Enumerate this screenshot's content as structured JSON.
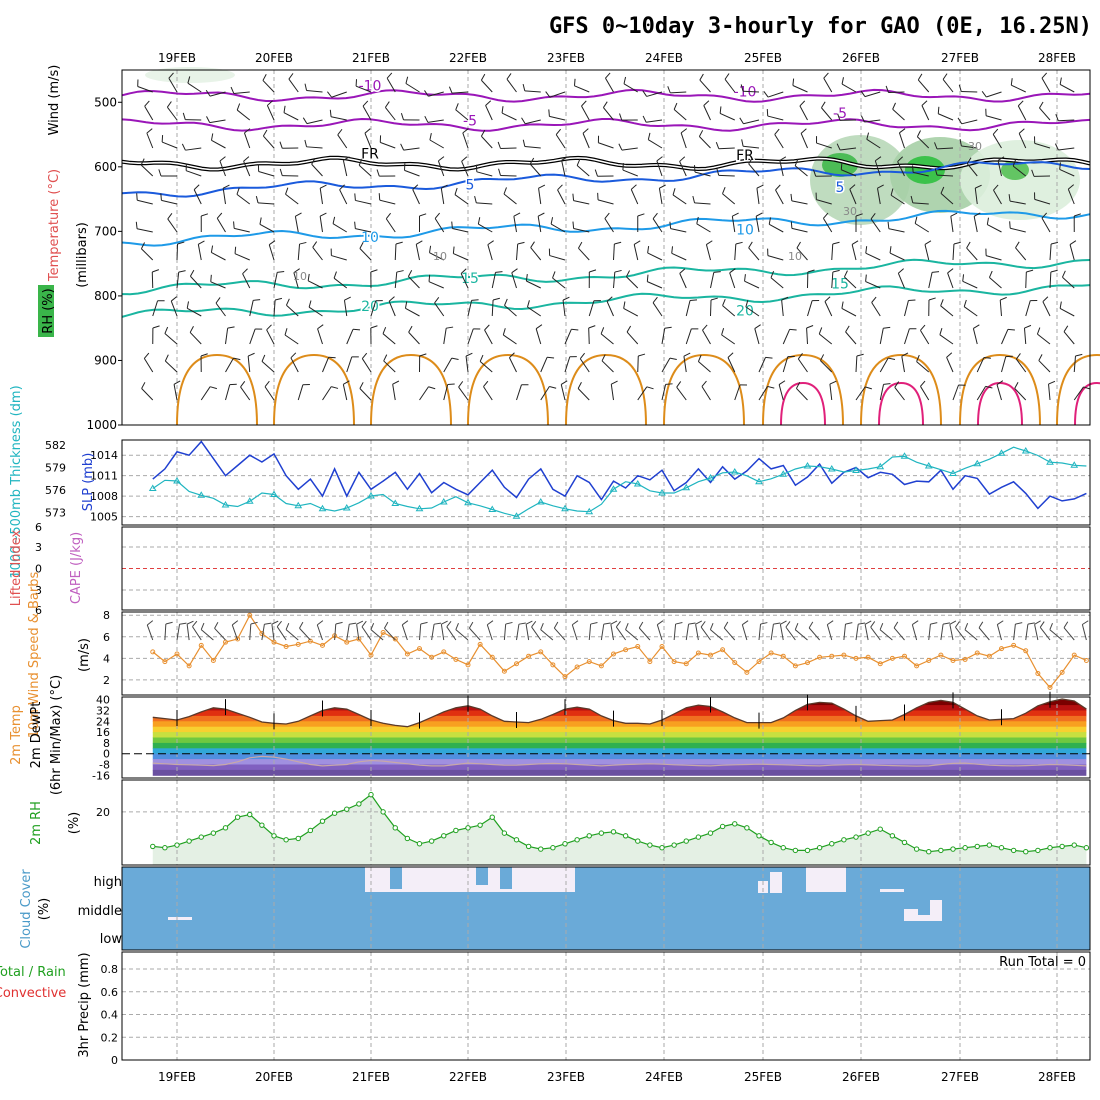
{
  "title": "GFS 0~10day 3-hourly for GAO (0E, 16.25N)",
  "dates": [
    "19FEB",
    "20FEB",
    "21FEB",
    "22FEB",
    "23FEB",
    "24FEB",
    "25FEB",
    "26FEB",
    "27FEB",
    "28FEB"
  ],
  "colors": {
    "grid": "#aaaaaa",
    "temp_cold": "#9a16b8",
    "temp_mid": "#1a5adc",
    "temp_cool": "#1e9ae8",
    "temp_warm": "#1ab5a0",
    "temp_hot": "#dd8c1a",
    "temp_vhot": "#e0207a",
    "slp": "#2040d0",
    "thickness": "#20b5c0",
    "wind": "#e89030",
    "rh": "#20a020",
    "cloud": "#6aaad8",
    "zero_line": "#e04040"
  },
  "chart_data": [
    {
      "panel": "upper_air",
      "type": "contour",
      "ylabel": [
        "Wind (m/s)",
        "Temperature (°C)",
        "RH (%)",
        "(millibars)"
      ],
      "yticks": [
        "500",
        "600",
        "700",
        "800",
        "900",
        "1000"
      ],
      "ylim": [
        450,
        1000
      ],
      "temperature_isotherms": [
        {
          "label": "-10",
          "level_mb": 490
        },
        {
          "label": "-5",
          "level_mb": 535
        },
        {
          "label": "FR",
          "level_mb": 595
        },
        {
          "label": "5",
          "level_mb": 640
        },
        {
          "label": "10",
          "level_mb": 715
        },
        {
          "label": "15",
          "level_mb": 790
        },
        {
          "label": "20",
          "level_mb": 830
        }
      ],
      "rh_labels": [
        "10",
        "10",
        "10",
        "30",
        "30"
      ]
    },
    {
      "panel": "slp_thickness",
      "type": "line",
      "ylabel_left": "1000~500mb Thickness (dm)",
      "ylabel_right": "SLP (mb)",
      "left_ticks": [
        "582",
        "579",
        "576",
        "573"
      ],
      "right_ticks": [
        "1014",
        "1011",
        "1008",
        "1005"
      ],
      "series": [
        {
          "name": "SLP (mb)",
          "values": [
            1010.5,
            1012,
            1014.5,
            1014,
            1016,
            1013.5,
            1011,
            1012.5,
            1014,
            1013,
            1014.2,
            1011,
            1009,
            1010.5,
            1008,
            1012,
            1008,
            1011.5,
            1009,
            1010.2,
            1011.5,
            1009,
            1011.3,
            1008.5,
            1010,
            1009,
            1008.2,
            1010,
            1011.8,
            1009.3,
            1007.8,
            1010.5,
            1012,
            1009,
            1008,
            1011,
            1010,
            1007.5,
            1010.2,
            1009.2,
            1011,
            1010.4,
            1011.8,
            1008.8,
            1010,
            1012,
            1010,
            1012.3,
            1010.5,
            1011.7,
            1013.5,
            1012,
            1012.5,
            1009.6,
            1010.8,
            1012.7,
            1009.9,
            1011.5,
            1012.2,
            1010.7,
            1011.5,
            1011.2,
            1009.7,
            1010.2,
            1010.1,
            1011.8,
            1009,
            1011,
            1010.6,
            1008.3,
            1009.3,
            1010.1,
            1008.4,
            1006.2,
            1008,
            1007.3,
            1007.6,
            1008.4
          ]
        },
        {
          "name": "1000~500mb Thickness (dm)",
          "values": [
            576.2,
            577.3,
            577.2,
            575.8,
            575.3,
            574.9,
            574,
            573.8,
            574.5,
            575.6,
            575.4,
            574.2,
            573.9,
            574.2,
            573.5,
            573.2,
            573.6,
            574.3,
            575.2,
            575.4,
            574.2,
            573.8,
            573.5,
            573.6,
            574.4,
            575.1,
            574.3,
            573.9,
            573.4,
            572.9,
            572.5,
            573.5,
            574.4,
            573.9,
            573.5,
            573.2,
            573.1,
            574.1,
            576.1,
            577.1,
            576.8,
            575.9,
            575.6,
            575.6,
            576.3,
            577.1,
            577.6,
            578.3,
            578.4,
            577.9,
            577.1,
            577.5,
            578.1,
            578.8,
            579.2,
            579.1,
            578.8,
            578.4,
            578.6,
            578.8,
            579.1,
            580.4,
            580.5,
            579.7,
            579.2,
            578.7,
            578.2,
            578.9,
            579.5,
            580.1,
            580.9,
            581.7,
            581.2,
            580.6,
            579.7,
            579.6,
            579.3,
            579.2
          ]
        }
      ]
    },
    {
      "panel": "cape_li",
      "type": "line",
      "ylabel": [
        "CAPE (J/kg)",
        "Lifted Index"
      ],
      "yticks": [
        "6",
        "3",
        "0",
        "3",
        "6"
      ],
      "lifted_index_values": []
    },
    {
      "panel": "wind10m",
      "type": "line",
      "ylabel": [
        "10m Wind Speed & Barbs",
        "(m/s)"
      ],
      "yticks": [
        "2",
        "4",
        "6",
        "8"
      ],
      "ylim": [
        0.6,
        8.3
      ],
      "series": [
        {
          "name": "10m Wind Speed & Barbs",
          "values": [
            4.6,
            3.7,
            4.4,
            3.3,
            5.2,
            3.8,
            5.5,
            5.8,
            8,
            6.3,
            5.5,
            5.1,
            5.3,
            5.6,
            5.2,
            6.1,
            5.5,
            5.8,
            4.3,
            6.4,
            5.8,
            4.4,
            4.9,
            4.1,
            4.6,
            3.9,
            3.4,
            5.3,
            4.1,
            2.8,
            3.5,
            4.2,
            4.6,
            3.4,
            2.3,
            3.2,
            3.7,
            3.3,
            4.4,
            4.8,
            5.1,
            3.7,
            5.1,
            3.7,
            3.5,
            4.5,
            4.3,
            4.8,
            3.6,
            2.7,
            3.7,
            4.5,
            4.2,
            3.3,
            3.6,
            4.1,
            4.2,
            4.3,
            4,
            4.1,
            3.5,
            4,
            4.2,
            3.3,
            3.8,
            4.3,
            3.8,
            3.9,
            4.5,
            4.2,
            4.9,
            5.2,
            4.7,
            2.6,
            1.3,
            2.7,
            4.3,
            3.8
          ]
        }
      ]
    },
    {
      "panel": "temp2m",
      "type": "area",
      "ylabel": [
        "2m Temp",
        "2m DewPt",
        "(6hr Min/Max) (°C)"
      ],
      "yticks": [
        "40",
        "32",
        "24",
        "16",
        "8",
        "0",
        "-8",
        "-16"
      ],
      "ylim": [
        -18,
        42
      ],
      "series": [
        {
          "name": "2m Temp",
          "values": [
            27,
            26,
            25,
            27.5,
            31,
            34,
            33,
            30,
            27,
            23.5,
            22.5,
            22,
            24,
            28,
            32,
            34,
            33,
            29,
            25,
            22.5,
            21,
            20,
            23,
            27,
            31,
            34,
            35.5,
            33,
            28,
            24,
            23.5,
            23,
            25.5,
            29,
            33,
            34.5,
            33,
            28,
            24.5,
            22.5,
            22.5,
            22,
            25,
            29.5,
            34,
            36,
            35,
            31,
            26.5,
            23,
            23,
            23,
            26.5,
            32,
            36.5,
            38,
            37.5,
            33,
            28,
            24,
            24.5,
            25,
            29,
            34,
            38,
            39.5,
            38,
            33,
            28,
            25,
            25.5,
            26,
            30,
            35.5,
            38.5,
            40.5,
            39,
            33
          ]
        },
        {
          "name": "2m DewPt",
          "values": [
            -7,
            -7.5,
            -8,
            -8.2,
            -8.5,
            -8.8,
            -8,
            -6,
            -3,
            -2,
            -2.5,
            -4,
            -6,
            -8,
            -9,
            -8.5,
            -8,
            -6,
            -5,
            -5.5,
            -6.5,
            -7.5,
            -8.5,
            -9,
            -9,
            -8,
            -7,
            -7.5,
            -8,
            -8.5,
            -8.5,
            -8,
            -7.5,
            -7.2,
            -7.5,
            -8,
            -8.5,
            -9,
            -8.5,
            -8,
            -7.8,
            -7.5,
            -7.8,
            -8.2,
            -8.5,
            -8.8,
            -9,
            -8.5,
            -8.2,
            -8,
            -7.8,
            -8,
            -8.2,
            -8.5,
            -8.8,
            -9,
            -8.5,
            -8.2,
            -8,
            -8.3,
            -8.6,
            -8.8,
            -9,
            -9.2,
            -9,
            -8,
            -7.2,
            -7,
            -7.8,
            -8.5,
            -8.8,
            -9,
            -8.8,
            -8.5,
            -8,
            -8.2,
            -8.6,
            -9
          ]
        }
      ]
    },
    {
      "panel": "rh2m",
      "type": "area",
      "ylabel": [
        "2m RH",
        "(%)"
      ],
      "yticks": [
        "20"
      ],
      "ylim": [
        0,
        32
      ],
      "series": [
        {
          "name": "2m RH",
          "values": [
            7,
            6.5,
            7.5,
            9,
            10.5,
            12,
            14,
            18,
            19,
            15,
            11,
            9.5,
            10,
            13,
            16.5,
            19.5,
            21,
            23,
            26.5,
            20,
            14,
            10,
            8,
            9,
            11,
            13,
            14,
            15,
            18,
            12,
            9.5,
            7,
            6,
            6.5,
            8,
            9.5,
            11,
            12,
            12.5,
            11,
            9,
            7.5,
            6.5,
            7.5,
            9,
            10.5,
            12,
            14.5,
            15.5,
            14,
            11,
            8.5,
            6.5,
            5.5,
            5.5,
            6.5,
            8,
            9.5,
            10.5,
            12,
            13.5,
            11,
            8.5,
            6,
            5,
            5.5,
            6,
            6.5,
            7,
            7.5,
            6.5,
            5.5,
            5,
            5.5,
            6.5,
            7,
            7.5,
            6.5
          ]
        }
      ]
    },
    {
      "panel": "cloud_cover",
      "type": "heatmap",
      "ylabel": [
        "Cloud Cover",
        "(%)"
      ],
      "yticks": [
        "high",
        "middle",
        "low"
      ],
      "clear_blocks": [
        {
          "layer": "high",
          "from": "21FEB",
          "to": "23FEB"
        },
        {
          "layer": "high",
          "from": "25FEB",
          "to": "25FEB"
        },
        {
          "layer": "high",
          "from": "25FEB",
          "to": "26FEB"
        },
        {
          "layer": "middle",
          "from": "26FEB",
          "to": "27FEB"
        }
      ]
    },
    {
      "panel": "precip",
      "type": "bar",
      "ylabel": [
        "Total / Rain",
        "Convective",
        "3hr Precip (mm)"
      ],
      "yticks": [
        "0",
        "0.2",
        "0.4",
        "0.6",
        "0.8"
      ],
      "ylim": [
        0,
        0.95
      ],
      "annotation": "Run Total = 0",
      "values": []
    }
  ]
}
